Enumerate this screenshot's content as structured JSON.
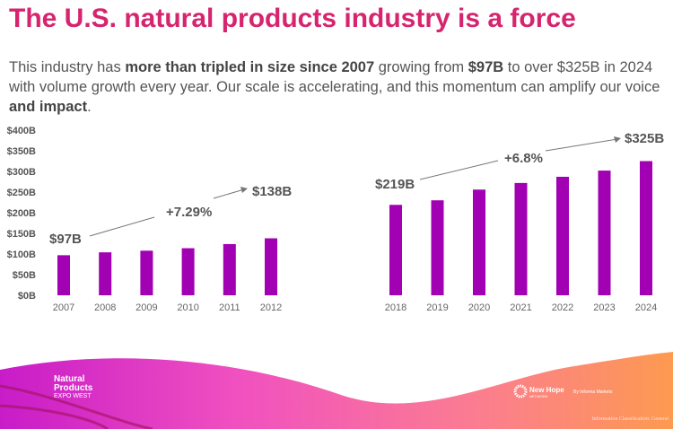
{
  "title": "The U.S. natural products industry is a force",
  "body": {
    "t1": "This industry has ",
    "b1": "more than tripled in size since 2007",
    "t2": " growing from ",
    "b2": "$97B",
    "t3": " to over $325B   in 2024 with volume growth every year.  Our scale is accelerating, and this momentum can amplify our voice ",
    "b3": "and impact",
    "t4": "."
  },
  "chart_data": [
    {
      "type": "bar",
      "categories": [
        "2007",
        "2008",
        "2009",
        "2010",
        "2011",
        "2012"
      ],
      "values": [
        97,
        104,
        108,
        114,
        124,
        138
      ],
      "ylim": [
        0,
        400
      ],
      "yticks": [
        "$0B",
        "$50B",
        "$100B",
        "$150B",
        "$200B",
        "$250B",
        "$300B",
        "$350B",
        "$400B"
      ],
      "color": "#a100b3",
      "annotations": {
        "start": "$97B",
        "end": "$138B",
        "growth": "+7.29%"
      }
    },
    {
      "type": "bar",
      "categories": [
        "2018",
        "2019",
        "2020",
        "2021",
        "2022",
        "2023",
        "2024"
      ],
      "values": [
        219,
        230,
        256,
        272,
        287,
        302,
        325
      ],
      "ylim": [
        0,
        400
      ],
      "color": "#a100b3",
      "annotations": {
        "start": "$219B",
        "end": "$325B",
        "growth": "+6.8%"
      }
    }
  ],
  "footer": {
    "logo_left": [
      "Natural",
      "Products",
      "EXPO WEST"
    ],
    "logo_right": "New Hope",
    "logo_right_sub": "NETWORK",
    "by": "By Informa Markets",
    "classification": "Information Classification: General"
  }
}
